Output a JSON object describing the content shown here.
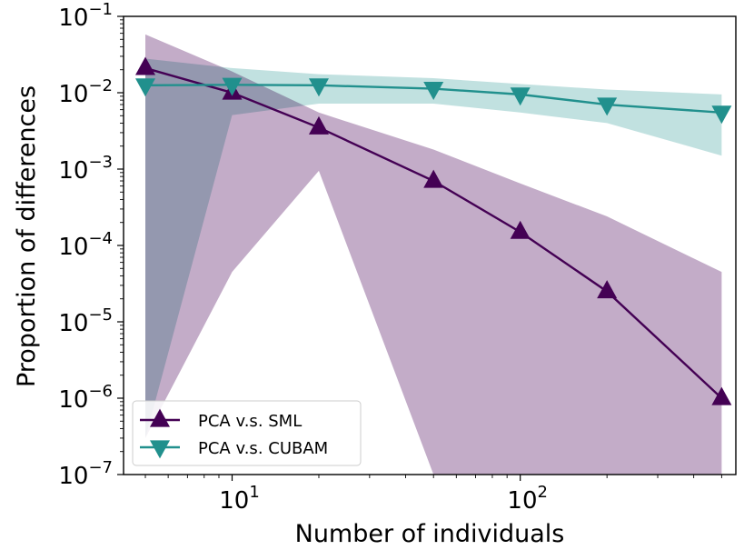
{
  "chart_data": {
    "type": "line",
    "xscale": "log",
    "yscale": "log",
    "xlabel": "Number of individuals",
    "ylabel": "Proportion of differences",
    "xlim": [
      4.2,
      560
    ],
    "ylim": [
      1e-07,
      0.1
    ],
    "x_ticks": [
      {
        "value": 10,
        "base": "10",
        "exp": "1"
      },
      {
        "value": 100,
        "base": "10",
        "exp": "2"
      }
    ],
    "y_ticks": [
      {
        "value": 1e-07,
        "base": "10",
        "exp": "−7"
      },
      {
        "value": 1e-06,
        "base": "10",
        "exp": "−6"
      },
      {
        "value": 1e-05,
        "base": "10",
        "exp": "−5"
      },
      {
        "value": 0.0001,
        "base": "10",
        "exp": "−4"
      },
      {
        "value": 0.001,
        "base": "10",
        "exp": "−3"
      },
      {
        "value": 0.01,
        "base": "10",
        "exp": "−2"
      },
      {
        "value": 0.1,
        "base": "10",
        "exp": "−1"
      }
    ],
    "legend_position": "lower-left",
    "series": [
      {
        "name": "PCA v.s. SML",
        "color": "#440154",
        "band_color": "#c3acc8",
        "marker": "triangle-up",
        "x": [
          5,
          10,
          20,
          50,
          100,
          200,
          500
        ],
        "y": [
          0.021,
          0.01,
          0.0035,
          0.0007,
          0.00015,
          2.5e-05,
          1e-06
        ],
        "upper": [
          0.058,
          0.019,
          0.0055,
          0.0018,
          0.00065,
          0.00024,
          4.5e-05
        ],
        "lower": [
          3e-07,
          4.5e-05,
          0.00095,
          1e-07,
          1e-07,
          1e-07,
          1e-07
        ]
      },
      {
        "name": "PCA v.s. CUBAM",
        "color": "#21908d",
        "band_color": "#b6dcdb",
        "marker": "triangle-down",
        "x": [
          5,
          10,
          20,
          50,
          100,
          200,
          500
        ],
        "y": [
          0.0125,
          0.0127,
          0.0125,
          0.0113,
          0.0095,
          0.007,
          0.0055
        ],
        "upper": [
          0.028,
          0.021,
          0.0175,
          0.0155,
          0.013,
          0.011,
          0.0095
        ],
        "lower": [
          3e-07,
          0.0051,
          0.0072,
          0.0072,
          0.0055,
          0.004,
          0.0015
        ]
      }
    ]
  }
}
